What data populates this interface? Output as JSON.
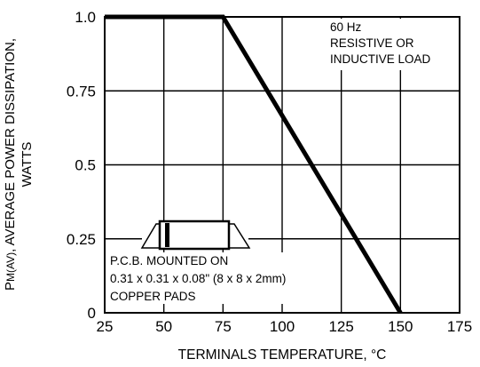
{
  "chart_data": {
    "type": "line",
    "xlabel": "TERMINALS TEMPERATURE, °C",
    "ylabel_main": "P",
    "ylabel_sub": "M(AV)",
    "ylabel_rest": ", AVERAGE POWER DISSIPATION,",
    "ylabel_line2": "WATTS",
    "xlim": [
      25,
      175
    ],
    "ylim": [
      0,
      1.0
    ],
    "x_ticks": [
      25,
      50,
      75,
      100,
      125,
      150,
      175
    ],
    "x_tick_labels": [
      "25",
      "50",
      "75",
      "100",
      "125",
      "150",
      "175"
    ],
    "y_ticks": [
      0,
      0.25,
      0.5,
      0.75,
      1.0
    ],
    "y_tick_labels": [
      "0",
      "0.25",
      "0.5",
      "0.75",
      "1.0"
    ],
    "grid": true,
    "series": [
      {
        "x": [
          25,
          75,
          150
        ],
        "y": [
          1.0,
          1.0,
          0
        ]
      }
    ],
    "annotations": {
      "frequency": [
        "60 Hz",
        "RESISTIVE OR",
        "INDUCTIVE LOAD"
      ],
      "mounting": [
        "P.C.B. MOUNTED ON",
        "0.31 x 0.31 x 0.08\" (8 x 8 x 2mm)",
        "COPPER PADS"
      ]
    }
  }
}
